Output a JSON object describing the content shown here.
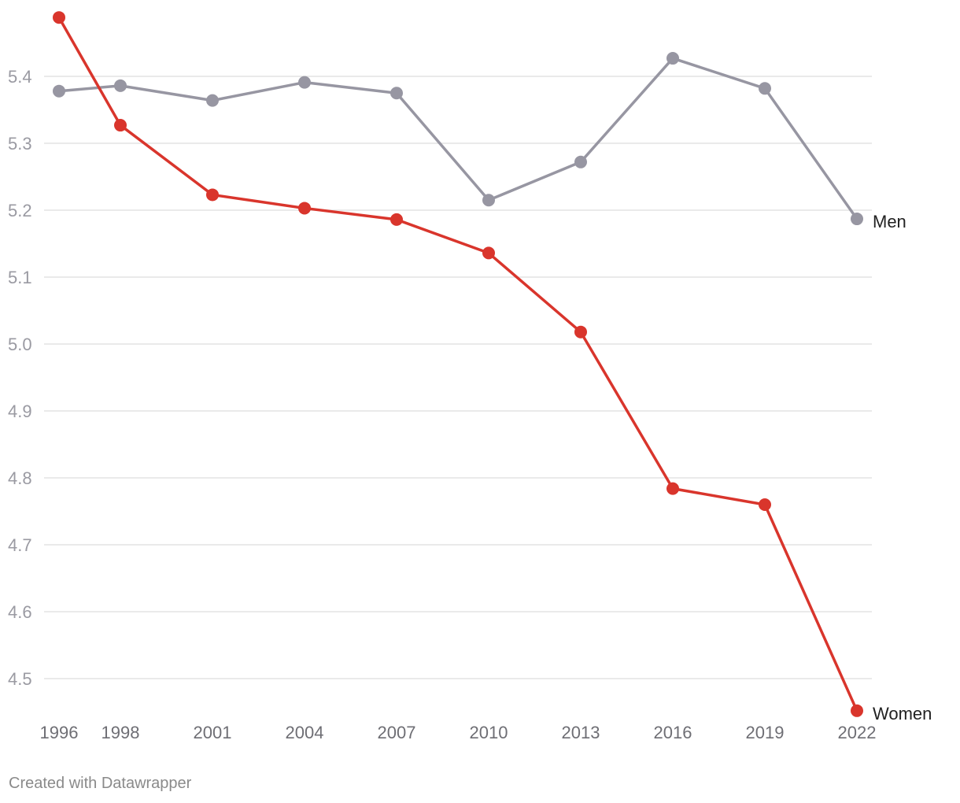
{
  "credit": "Created with Datawrapper",
  "chart_data": {
    "type": "line",
    "x": [
      1996,
      1998,
      2001,
      2004,
      2007,
      2010,
      2013,
      2016,
      2019,
      2022
    ],
    "x_tick_labels": [
      "1996",
      "1998",
      "2001",
      "2004",
      "2007",
      "2010",
      "2013",
      "2016",
      "2019",
      "2022"
    ],
    "y_ticks": [
      4.5,
      4.6,
      4.7,
      4.8,
      4.9,
      5.0,
      5.1,
      5.2,
      5.3,
      5.4
    ],
    "y_tick_labels": [
      "4.5",
      "4.6",
      "4.7",
      "4.8",
      "4.9",
      "5.0",
      "5.1",
      "5.2",
      "5.3",
      "5.4"
    ],
    "ylim": [
      4.45,
      5.49
    ],
    "grid": true,
    "legend": "direct labels at line ends",
    "series": [
      {
        "name": "Men",
        "color": "#9796a2",
        "values": [
          5.378,
          5.386,
          5.364,
          5.391,
          5.375,
          5.215,
          5.272,
          5.427,
          5.382,
          5.187
        ]
      },
      {
        "name": "Women",
        "color": "#d9352c",
        "values": [
          5.488,
          5.327,
          5.223,
          5.203,
          5.186,
          5.136,
          5.018,
          4.784,
          4.76,
          4.452
        ]
      }
    ]
  }
}
